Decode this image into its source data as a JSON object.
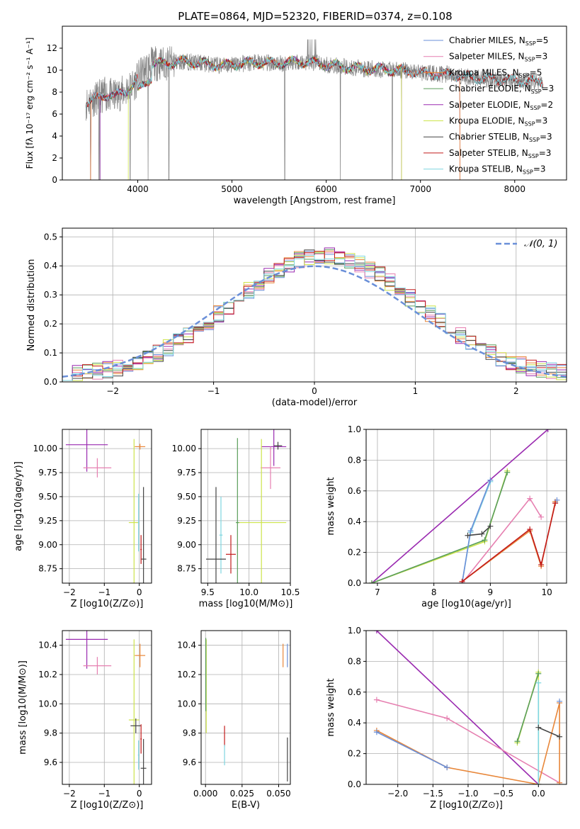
{
  "figure": {
    "title": "PLATE=0864, MJD=52320, FIBERID=0374, z=0.108"
  },
  "series_styles": [
    {
      "name": "Chabrier MILES",
      "nssp": "5",
      "color": "#6a8fd8"
    },
    {
      "name": "Salpeter MILES",
      "nssp": "3",
      "color": "#e67fb0"
    },
    {
      "name": "Kroupa MILES",
      "nssp": "5",
      "color": "#e8873a"
    },
    {
      "name": "Chabrier ELODIE",
      "nssp": "3",
      "color": "#5a9e5a"
    },
    {
      "name": "Salpeter ELODIE",
      "nssp": "2",
      "color": "#9a2ab0"
    },
    {
      "name": "Kroupa ELODIE",
      "nssp": "3",
      "color": "#cde44a"
    },
    {
      "name": "Chabrier STELIB",
      "nssp": "3",
      "color": "#444444"
    },
    {
      "name": "Salpeter STELIB",
      "nssp": "3",
      "color": "#c21b1b"
    },
    {
      "name": "Kroupa STELIB",
      "nssp": "3",
      "color": "#7fd6e0"
    }
  ],
  "chart_data": [
    {
      "id": "spectrum",
      "type": "line",
      "xlabel": "wavelength [Angstrom, rest frame]",
      "ylabel": "Flux [f_λ 10^-17 erg cm^-2 s^-1 A^-1]",
      "xlim": [
        3200,
        8550
      ],
      "ylim": [
        0,
        14
      ],
      "xticks": [
        4000,
        5000,
        6000,
        7000,
        8000
      ],
      "yticks": [
        0,
        2,
        4,
        6,
        8,
        10,
        12
      ],
      "grid": false,
      "legend": "top-right",
      "data_color": "#808080",
      "model_continuum": {
        "x": [
          3450,
          3550,
          3650,
          3750,
          3850,
          3950,
          4050,
          4150,
          4300,
          4500,
          4700,
          4900,
          5100,
          5300,
          5500,
          5700,
          5900,
          6100,
          6300,
          6500,
          6700,
          6900,
          7100,
          7300,
          7500,
          7700,
          7900,
          8100,
          8300
        ],
        "y": [
          7.0,
          7.4,
          7.8,
          7.6,
          8.0,
          8.6,
          9.8,
          10.6,
          10.6,
          10.8,
          10.6,
          10.4,
          10.6,
          10.7,
          10.6,
          10.8,
          10.6,
          10.4,
          10.2,
          10.1,
          10.0,
          9.9,
          9.7,
          9.6,
          9.4,
          9.2,
          9.1,
          9.0,
          8.9
        ]
      }
    },
    {
      "id": "residuals",
      "type": "line",
      "xlabel": "(data-model)/error",
      "ylabel": "Normed distribution",
      "xlim": [
        -2.5,
        2.5
      ],
      "ylim": [
        0,
        0.53
      ],
      "xticks": [
        -2,
        -1,
        0,
        1,
        2
      ],
      "yticks": [
        0.0,
        0.1,
        0.2,
        0.3,
        0.4,
        0.5
      ],
      "grid": true,
      "legend": "top-right",
      "gaussian": {
        "name": "𝒩(0, 1)",
        "mean": 0,
        "sigma": 1,
        "color": "#6a8fd8"
      }
    },
    {
      "id": "age-vs-z",
      "type": "scatter",
      "xlabel": "Z [log10(Z/Z⊙)]",
      "ylabel": "age [log10(age/yr)]",
      "xlim": [
        -2.2,
        0.35
      ],
      "ylim": [
        8.6,
        10.2
      ],
      "xticks": [
        -2,
        -1,
        0
      ],
      "yticks": [
        8.75,
        9.0,
        9.25,
        9.5,
        9.75,
        10.0
      ],
      "grid": true,
      "points": [
        {
          "s": 4,
          "x": -1.5,
          "y": 10.04,
          "xerr": 0.6,
          "yerr": 0.28
        },
        {
          "s": 1,
          "x": -1.2,
          "y": 9.8,
          "xerr": 0.4,
          "yerr": 0.1
        },
        {
          "s": 2,
          "x": 0.02,
          "y": 10.02,
          "xerr": 0.15,
          "yerr": 0.03
        },
        {
          "s": 5,
          "x": -0.15,
          "y": 9.23,
          "xerr": 0.15,
          "yerr": 0.87
        },
        {
          "s": 8,
          "x": -0.02,
          "y": 9.23,
          "xerr": 0.02,
          "yerr": 0.3
        },
        {
          "s": 6,
          "x": 0.12,
          "y": 8.85,
          "xerr": 0.08,
          "yerr": 0.75
        },
        {
          "s": 7,
          "x": 0.05,
          "y": 8.95,
          "xerr": 0.02,
          "yerr": 0.15
        }
      ]
    },
    {
      "id": "age-vs-mass",
      "type": "scatter",
      "xlabel": "mass [log10(M/M⊙)]",
      "ylabel": "",
      "xlim": [
        9.42,
        10.5
      ],
      "ylim": [
        8.6,
        10.2
      ],
      "xticks": [
        9.5,
        10.0,
        10.5
      ],
      "yticks": [
        8.75,
        9.0,
        9.25,
        9.5,
        9.75,
        10.0
      ],
      "grid": true,
      "points": [
        {
          "s": 4,
          "x": 10.3,
          "y": 10.02,
          "xerr": 0.15,
          "yerr": 0.2
        },
        {
          "s": 1,
          "x": 10.26,
          "y": 9.8,
          "xerr": 0.12,
          "yerr": 0.22
        },
        {
          "s": 6,
          "x": 10.35,
          "y": 10.03,
          "xerr": 0.05,
          "yerr": 0.04
        },
        {
          "s": 5,
          "x": 10.15,
          "y": 9.23,
          "xerr": 0.3,
          "yerr": 0.87
        },
        {
          "s": 3,
          "x": 9.86,
          "y": 9.23,
          "xerr": 0.02,
          "yerr": 0.88
        },
        {
          "s": 8,
          "x": 9.66,
          "y": 9.1,
          "xerr": 0.02,
          "yerr": 0.4
        },
        {
          "s": 6,
          "x": 9.6,
          "y": 8.85,
          "xerr": 0.12,
          "yerr": 0.75
        },
        {
          "s": 7,
          "x": 9.78,
          "y": 8.9,
          "xerr": 0.06,
          "yerr": 0.2
        }
      ]
    },
    {
      "id": "weight-vs-age",
      "type": "line",
      "xlabel": "age  [log10(age/yr)]",
      "ylabel": "mass weight",
      "xlim": [
        6.8,
        10.35
      ],
      "ylim": [
        0,
        1.0
      ],
      "xticks": [
        7,
        8,
        9,
        10
      ],
      "yticks": [
        0.0,
        0.2,
        0.4,
        0.6,
        0.8,
        1.0
      ],
      "grid": true,
      "series": [
        {
          "s": 4,
          "x": [
            6.9,
            10.02
          ],
          "y": [
            0.0,
            1.0
          ]
        },
        {
          "s": 5,
          "x": [
            6.9,
            8.9,
            9.3
          ],
          "y": [
            0.0,
            0.27,
            0.73
          ]
        },
        {
          "s": 3,
          "x": [
            6.9,
            8.9,
            9.3
          ],
          "y": [
            0.0,
            0.28,
            0.72
          ]
        },
        {
          "s": 1,
          "x": [
            8.5,
            9.7,
            9.9
          ],
          "y": [
            0.0,
            0.55,
            0.43
          ]
        },
        {
          "s": 8,
          "x": [
            8.5,
            8.65,
            9.0
          ],
          "y": [
            0.0,
            0.33,
            0.66
          ]
        },
        {
          "s": 0,
          "x": [
            8.5,
            8.65,
            9.0
          ],
          "y": [
            0.0,
            0.34,
            0.67
          ]
        },
        {
          "s": 6,
          "x": [
            8.6,
            8.85,
            9.0
          ],
          "y": [
            0.31,
            0.32,
            0.37
          ]
        },
        {
          "s": 2,
          "x": [
            8.5,
            9.7,
            9.9,
            10.15
          ],
          "y": [
            0.01,
            0.34,
            0.11,
            0.53
          ]
        },
        {
          "s": 7,
          "x": [
            8.5,
            9.7,
            9.9,
            10.15
          ],
          "y": [
            0.01,
            0.35,
            0.12,
            0.52
          ]
        },
        {
          "s": 0,
          "x": [
            10.18
          ],
          "y": [
            0.54
          ]
        }
      ]
    },
    {
      "id": "mass-vs-z",
      "type": "scatter",
      "xlabel": "Z [log10(Z/Z⊙)]",
      "ylabel": "mass [log10(M/M⊙)]",
      "xlim": [
        -2.2,
        0.35
      ],
      "ylim": [
        9.45,
        10.5
      ],
      "xticks": [
        -2,
        -1,
        0
      ],
      "yticks": [
        9.6,
        9.8,
        10.0,
        10.2,
        10.4
      ],
      "grid": true,
      "points": [
        {
          "s": 4,
          "x": -1.5,
          "y": 10.44,
          "xerr": 0.6,
          "yerr": 0.2
        },
        {
          "s": 1,
          "x": -1.2,
          "y": 10.26,
          "xerr": 0.4,
          "yerr": 0.06
        },
        {
          "s": 2,
          "x": 0.02,
          "y": 10.33,
          "xerr": 0.15,
          "yerr": 0.08
        },
        {
          "s": 5,
          "x": -0.15,
          "y": 9.89,
          "xerr": 0.15,
          "yerr": 0.55
        },
        {
          "s": 6,
          "x": -0.1,
          "y": 9.85,
          "xerr": 0.15,
          "yerr": 0.05
        },
        {
          "s": 8,
          "x": -0.02,
          "y": 9.65,
          "xerr": 0.02,
          "yerr": 0.1
        },
        {
          "s": 7,
          "x": 0.05,
          "y": 9.76,
          "xerr": 0.02,
          "yerr": 0.1
        },
        {
          "s": 6,
          "x": 0.12,
          "y": 9.56,
          "xerr": 0.08,
          "yerr": 0.2
        }
      ]
    },
    {
      "id": "mass-vs-ebv",
      "type": "scatter",
      "xlabel": "E(B-V)",
      "ylabel": "",
      "xlim": [
        -0.003,
        0.058
      ],
      "ylim": [
        9.45,
        10.5
      ],
      "xticks": [
        0.0,
        0.025,
        0.05
      ],
      "yticks": [
        9.6,
        9.8,
        10.0,
        10.2,
        10.4
      ],
      "grid": true,
      "points": [
        {
          "s": 5,
          "x": 0.0005,
          "y": 10.12,
          "yerr": 0.32
        },
        {
          "s": 3,
          "x": 0.0002,
          "y": 10.2,
          "yerr": 0.25
        },
        {
          "s": 7,
          "x": 0.013,
          "y": 9.78,
          "yerr": 0.07
        },
        {
          "s": 8,
          "x": 0.013,
          "y": 9.65,
          "yerr": 0.07
        },
        {
          "s": 2,
          "x": 0.053,
          "y": 10.33,
          "yerr": 0.08
        },
        {
          "s": 0,
          "x": 0.056,
          "y": 10.33,
          "yerr": 0.08
        },
        {
          "s": 6,
          "x": 0.056,
          "y": 9.62,
          "yerr": 0.15
        }
      ]
    },
    {
      "id": "weight-vs-z",
      "type": "line",
      "xlabel": "Z [log10(Z/Z⊙)]",
      "ylabel": "mass weight",
      "xlim": [
        -2.45,
        0.4
      ],
      "ylim": [
        0,
        1.0
      ],
      "xticks": [
        -2.0,
        -1.5,
        -1.0,
        -0.5,
        0.0
      ],
      "yticks": [
        0.0,
        0.2,
        0.4,
        0.6,
        0.8,
        1.0
      ],
      "grid": true,
      "series": [
        {
          "s": 4,
          "x": [
            -2.3,
            0.0
          ],
          "y": [
            1.0,
            0.0
          ]
        },
        {
          "s": 1,
          "x": [
            -2.3,
            -1.3,
            0.3
          ],
          "y": [
            0.55,
            0.43,
            0.01
          ]
        },
        {
          "s": 2,
          "x": [
            -2.3,
            -1.3,
            0.0,
            0.3,
            0.3
          ],
          "y": [
            0.35,
            0.11,
            0.0,
            0.53,
            0.01
          ]
        },
        {
          "s": 0,
          "x": [
            -2.3,
            -1.3
          ],
          "y": [
            0.34,
            0.11
          ]
        },
        {
          "s": 5,
          "x": [
            -0.3,
            0.0,
            0.0
          ],
          "y": [
            0.27,
            0.73,
            0.0
          ]
        },
        {
          "s": 3,
          "x": [
            -0.3,
            0.0
          ],
          "y": [
            0.28,
            0.72
          ]
        },
        {
          "s": 8,
          "x": [
            0.0,
            0.0
          ],
          "y": [
            0.66,
            0.0
          ]
        },
        {
          "s": 6,
          "x": [
            0.0,
            0.3
          ],
          "y": [
            0.37,
            0.31
          ]
        },
        {
          "s": 0,
          "x": [
            0.3
          ],
          "y": [
            0.54
          ]
        }
      ]
    }
  ]
}
